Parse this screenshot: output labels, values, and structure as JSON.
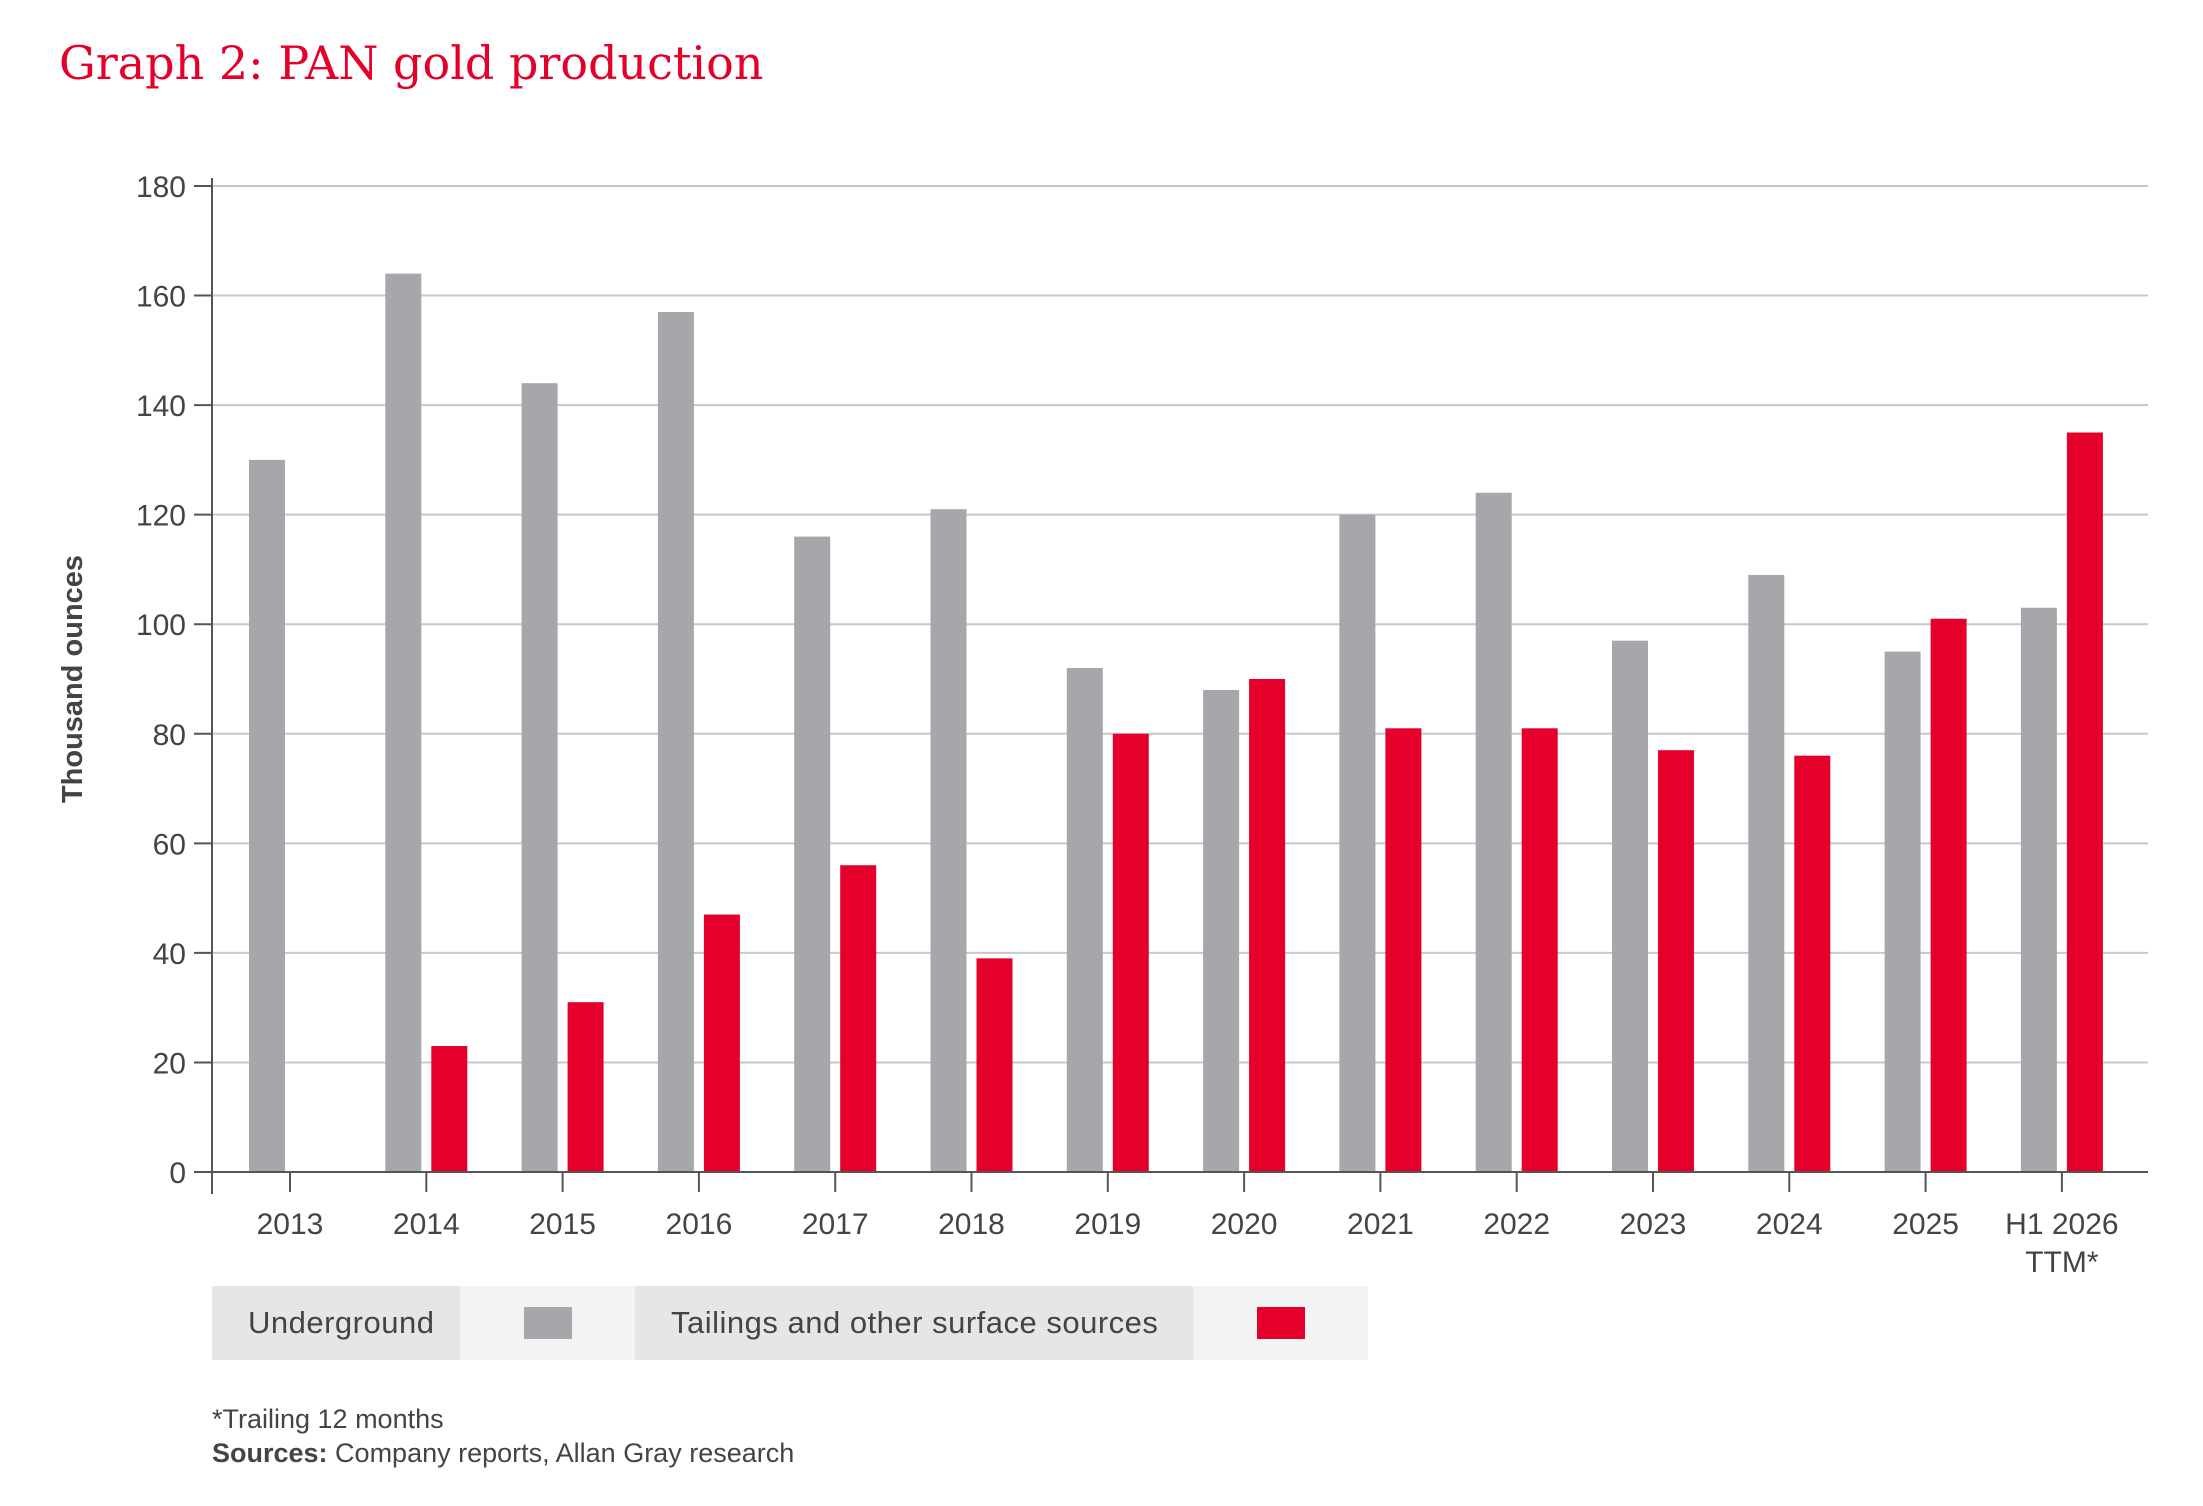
{
  "title": "Graph 2: PAN gold production",
  "chart_data": {
    "type": "bar",
    "title": "Graph 2: PAN gold production",
    "xlabel": "",
    "ylabel": "Thousand ounces",
    "ylim": [
      0,
      180
    ],
    "yticks": [
      0,
      20,
      40,
      60,
      80,
      100,
      120,
      140,
      160,
      180
    ],
    "grid": true,
    "legend_placement": "bottom",
    "categories": [
      "2013",
      "2014",
      "2015",
      "2016",
      "2017",
      "2018",
      "2019",
      "2020",
      "2021",
      "2022",
      "2023",
      "2024",
      "2025",
      "H1 2026 TTM*"
    ],
    "category_lines": [
      [
        "2013"
      ],
      [
        "2014"
      ],
      [
        "2015"
      ],
      [
        "2016"
      ],
      [
        "2017"
      ],
      [
        "2018"
      ],
      [
        "2019"
      ],
      [
        "2020"
      ],
      [
        "2021"
      ],
      [
        "2022"
      ],
      [
        "2023"
      ],
      [
        "2024"
      ],
      [
        "2025"
      ],
      [
        "H1 2026",
        "TTM*"
      ]
    ],
    "series": [
      {
        "name": "Underground",
        "color": "#a6a7aa",
        "values": [
          130,
          164,
          144,
          157,
          116,
          121,
          92,
          88,
          120,
          124,
          97,
          109,
          95,
          103
        ]
      },
      {
        "name": "Tailings and other surface sources",
        "color": "#e4002b",
        "values": [
          null,
          23,
          31,
          47,
          56,
          39,
          80,
          90,
          81,
          81,
          77,
          76,
          101,
          135
        ]
      }
    ]
  },
  "footnote": "*Trailing 12 months",
  "sources_label": "Sources:",
  "sources_text": " Company reports, Allan Gray research"
}
